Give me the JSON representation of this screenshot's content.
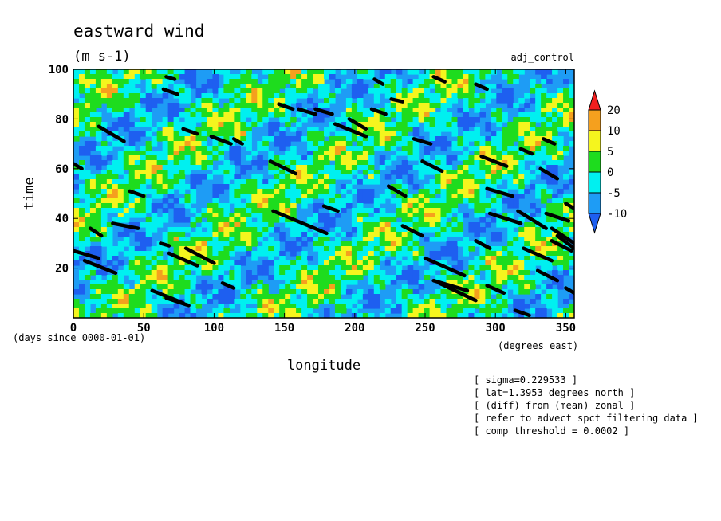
{
  "chart_data": {
    "type": "heatmap",
    "title": "eastward wind",
    "units": "(m s-1)",
    "experiment": "adj_control",
    "xlabel": "longitude",
    "x_units": "(degrees_east)",
    "ylabel": "time",
    "y_units": "(days since 0000-01-01)",
    "xlim": [
      0,
      356
    ],
    "ylim": [
      0,
      100
    ],
    "x_ticks": [
      0,
      50,
      100,
      150,
      200,
      250,
      300,
      350
    ],
    "y_ticks": [
      20,
      40,
      60,
      80,
      100
    ],
    "colorbar": {
      "levels": [
        -10,
        -5,
        0,
        5,
        10,
        20
      ],
      "labels": [
        "20",
        "10",
        "5",
        "0",
        "-5",
        "-10"
      ],
      "colors": [
        "#1e5ff0",
        "#1e9cf5",
        "#00f0f0",
        "#1edc1e",
        "#f5f51e",
        "#f5a01e",
        "#f01e1e"
      ],
      "extend": "both"
    },
    "overlay": "black streaks along (degrees_east) threshold contours",
    "streaks": [
      [
        0,
        27,
        18,
        24
      ],
      [
        8,
        23,
        30,
        18
      ],
      [
        12,
        36,
        20,
        33
      ],
      [
        18,
        77,
        36,
        71
      ],
      [
        0,
        62,
        6,
        60
      ],
      [
        28,
        38,
        46,
        36
      ],
      [
        40,
        51,
        50,
        49
      ],
      [
        56,
        11,
        78,
        6
      ],
      [
        62,
        30,
        68,
        29
      ],
      [
        66,
        8,
        82,
        5
      ],
      [
        64,
        92,
        74,
        90
      ],
      [
        66,
        97,
        72,
        96
      ],
      [
        68,
        26,
        88,
        21
      ],
      [
        78,
        76,
        88,
        74
      ],
      [
        80,
        28,
        100,
        22
      ],
      [
        98,
        73,
        112,
        70
      ],
      [
        106,
        14,
        114,
        12
      ],
      [
        114,
        72,
        120,
        70
      ],
      [
        142,
        43,
        180,
        34
      ],
      [
        140,
        63,
        158,
        58
      ],
      [
        146,
        86,
        156,
        84
      ],
      [
        160,
        84,
        172,
        82
      ],
      [
        172,
        84,
        184,
        82
      ],
      [
        178,
        45,
        188,
        43
      ],
      [
        186,
        78,
        208,
        73
      ],
      [
        196,
        80,
        208,
        76
      ],
      [
        212,
        84,
        222,
        82
      ],
      [
        214,
        96,
        220,
        94
      ],
      [
        226,
        88,
        234,
        87
      ],
      [
        224,
        53,
        236,
        49
      ],
      [
        234,
        37,
        248,
        33
      ],
      [
        242,
        72,
        254,
        70
      ],
      [
        248,
        63,
        262,
        59
      ],
      [
        250,
        24,
        278,
        17
      ],
      [
        256,
        97,
        264,
        95
      ],
      [
        256,
        15,
        280,
        11
      ],
      [
        260,
        14,
        286,
        7
      ],
      [
        286,
        94,
        294,
        92
      ],
      [
        286,
        31,
        296,
        28
      ],
      [
        290,
        65,
        308,
        61
      ],
      [
        294,
        13,
        306,
        10
      ],
      [
        294,
        52,
        312,
        49
      ],
      [
        296,
        42,
        318,
        38
      ],
      [
        316,
        43,
        336,
        36
      ],
      [
        318,
        68,
        326,
        66
      ],
      [
        320,
        28,
        340,
        23
      ],
      [
        332,
        60,
        344,
        56
      ],
      [
        334,
        72,
        342,
        70
      ],
      [
        336,
        42,
        352,
        39
      ],
      [
        340,
        31,
        354,
        27
      ],
      [
        330,
        19,
        344,
        15
      ],
      [
        344,
        33,
        356,
        28
      ],
      [
        314,
        3,
        324,
        1
      ],
      [
        350,
        46,
        356,
        44
      ],
      [
        350,
        12,
        356,
        10
      ],
      [
        340,
        36,
        356,
        30
      ]
    ]
  },
  "annotations": [
    "[ sigma=0.229533 ]",
    "[ lat=1.3953 degrees_north ]",
    "[ (diff) from (mean) zonal ]",
    "[ refer to advect spct filtering data ]",
    "[ comp threshold = 0.0002 ]"
  ]
}
